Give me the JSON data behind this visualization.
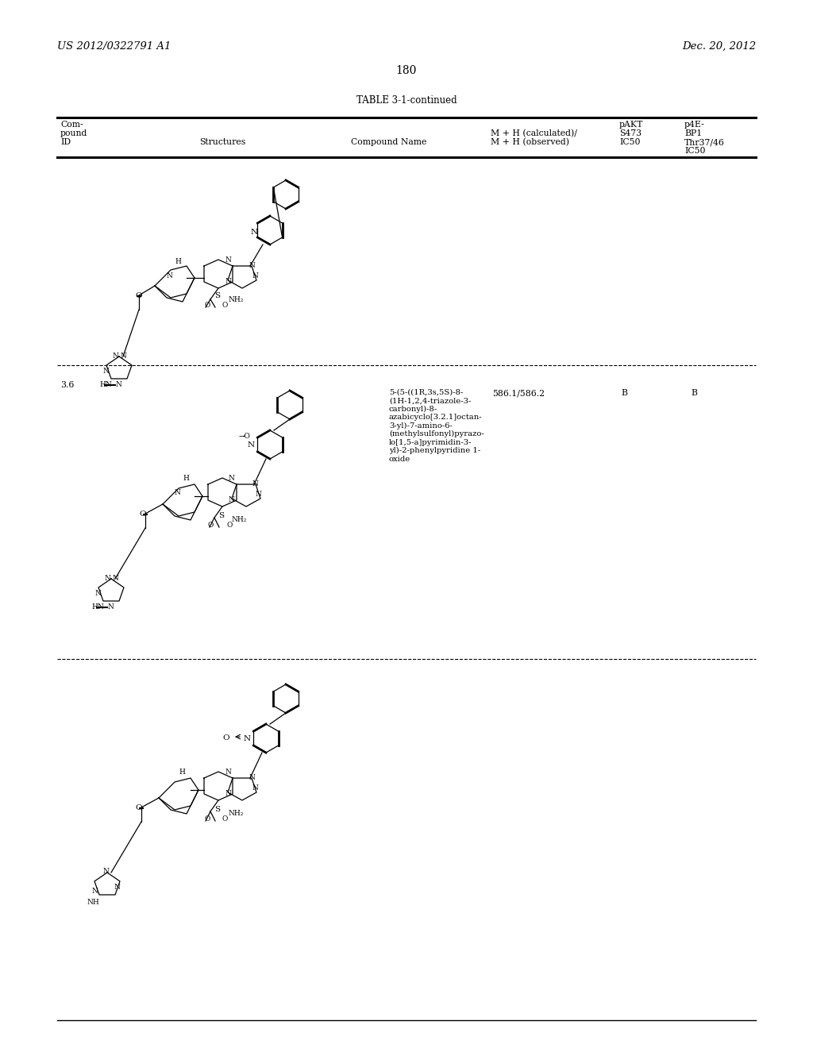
{
  "page_header_left": "US 2012/0322791 A1",
  "page_header_right": "Dec. 20, 2012",
  "page_number": "180",
  "table_title": "TABLE 3-1-continued",
  "col_headers": {
    "col1_line1": "Com-",
    "col1_line2": "pound",
    "col1_line3": "ID",
    "col2": "Structures",
    "col3": "Compound Name",
    "col4_line1": "M + H (calculated)/",
    "col4_line2": "M + H (observed)",
    "col5_line1": "pAKT",
    "col5_line2": "S473",
    "col5_line3": "IC50",
    "col6_line1": "p4E-",
    "col6_line2": "BP1",
    "col6_line3": "Thr37/46",
    "col6_line4": "IC50"
  },
  "row1": {
    "id": "",
    "mh": "",
    "pakt": "",
    "p4e": "",
    "compound_name": ""
  },
  "row2": {
    "id": "3.6",
    "mh": "586.1/586.2",
    "pakt": "B",
    "p4e": "B",
    "compound_name": "5-(5-((1R,3s,5S)-8-\n(1H-1,2,4-triazole-3-\ncarbonyl)-8-\nazabicyclo[3.2.1]octan-\n3-yl)-7-amino-6-\n(methylsulfonyl)pyrazo-\nlo[1,5-a]pyrimidin-3-\nyl)-2-phenylpyridine 1-\noxide"
  },
  "row3": {
    "id": "",
    "mh": "",
    "pakt": "",
    "p4e": "",
    "compound_name": ""
  },
  "background_color": "#ffffff",
  "text_color": "#000000",
  "line_color": "#000000",
  "font_size_header": 9,
  "font_size_body": 8.5,
  "font_size_page": 10
}
